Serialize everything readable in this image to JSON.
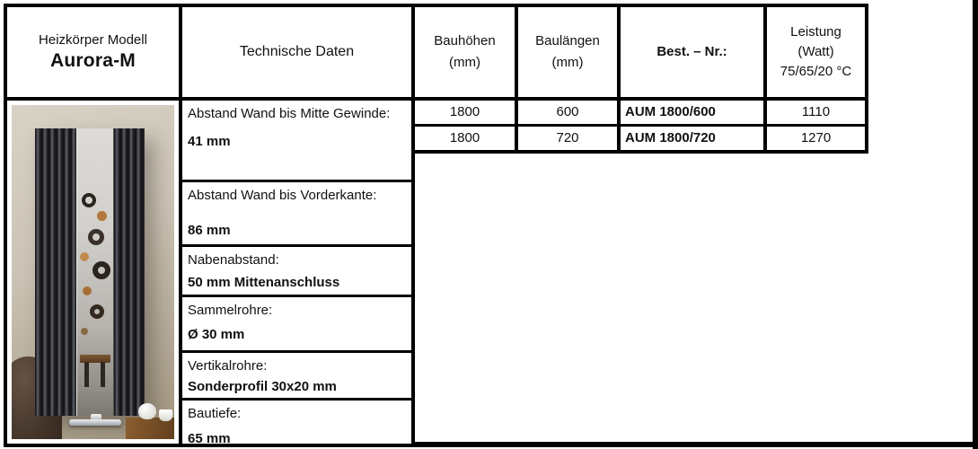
{
  "model_box": {
    "line1": "Heizkörper Modell",
    "name": "Aurora-M"
  },
  "tech_box": {
    "title": "Technische Daten"
  },
  "spec_table": {
    "headers": {
      "col1": {
        "l1": "Bauhöhen",
        "l2": "(mm)"
      },
      "col2": {
        "l1": "Baulängen",
        "l2": "(mm)"
      },
      "col3": {
        "l1": "Best. – Nr.:"
      },
      "col4": {
        "l1": "Leistung",
        "l2": "(Watt)",
        "l3": "75/65/20 °C"
      }
    },
    "rows": [
      {
        "hoehe": "1800",
        "laenge": "600",
        "nr": "AUM 1800/600",
        "watt": "1110"
      },
      {
        "hoehe": "1800",
        "laenge": "720",
        "nr": "AUM 1800/720",
        "watt": "1270"
      }
    ]
  },
  "tech_specs": [
    {
      "label": "Abstand Wand bis Mitte Gewinde:",
      "value": "41 mm"
    },
    {
      "label": "Abstand Wand bis Vorderkante:",
      "value": "86 mm"
    },
    {
      "label": "Nabenabstand:",
      "value": "50 mm Mittenanschluss"
    },
    {
      "label": "Sammelrohre:",
      "value": "Ø 30 mm"
    },
    {
      "label": "Vertikalrohre:",
      "value": "Sonderprofil 30x20 mm"
    },
    {
      "label": "Bautiefe:",
      "value": "65 mm"
    }
  ],
  "colors": {
    "table_border": "#000000",
    "text": "#111111",
    "photo_wall": "#c8c0b2",
    "radiator_dark": "#1a1a1e",
    "copper_ring": "#b5773b"
  }
}
